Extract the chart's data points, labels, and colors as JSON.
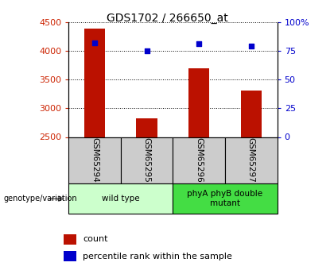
{
  "title": "GDS1702 / 266650_at",
  "samples": [
    "GSM65294",
    "GSM65295",
    "GSM65296",
    "GSM65297"
  ],
  "count_values": [
    4390,
    2820,
    3690,
    3310
  ],
  "percentile_values": [
    82,
    75,
    81,
    79
  ],
  "ylim_left": [
    2500,
    4500
  ],
  "ylim_right": [
    0,
    100
  ],
  "yticks_left": [
    2500,
    3000,
    3500,
    4000,
    4500
  ],
  "yticks_right": [
    0,
    25,
    50,
    75,
    100
  ],
  "yticklabels_right": [
    "0",
    "25",
    "50",
    "75",
    "100%"
  ],
  "bar_color": "#bb1100",
  "dot_color": "#0000cc",
  "bar_width": 0.4,
  "group_labels": [
    "wild type",
    "phyA phyB double\nmutant"
  ],
  "group_ranges": [
    [
      0,
      2
    ],
    [
      2,
      4
    ]
  ],
  "group_color_light": "#ccffcc",
  "group_color_dark": "#44dd44",
  "sample_box_color": "#cccccc",
  "left_tick_color": "#cc2200",
  "right_tick_color": "#0000cc",
  "legend_count_label": "count",
  "legend_percentile_label": "percentile rank within the sample",
  "genotype_label": "genotype/variation"
}
